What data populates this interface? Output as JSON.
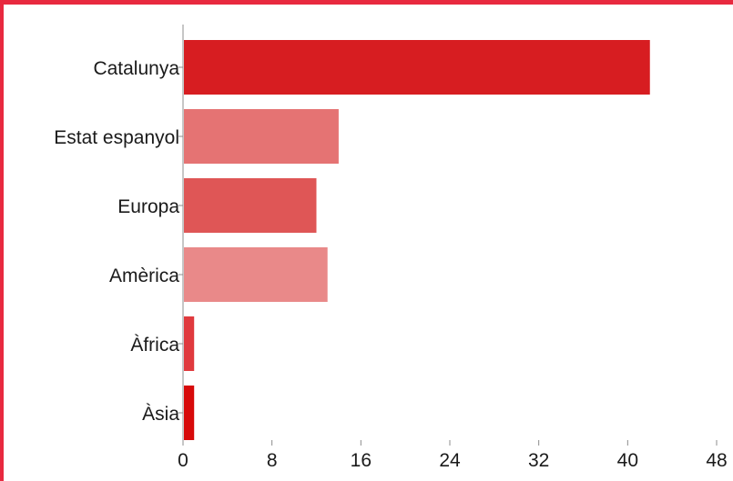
{
  "chart_data": {
    "type": "bar",
    "orientation": "horizontal",
    "categories": [
      "Catalunya",
      "Estat espanyol",
      "Europa",
      "Amèrica",
      "Àfrica",
      "Àsia"
    ],
    "values": [
      42,
      14,
      12,
      13,
      1,
      1
    ],
    "bar_colors": [
      "#d71d21",
      "#e57373",
      "#df5656",
      "#e98989",
      "#e03a3e",
      "#d70a0a"
    ],
    "xlim": [
      0,
      48
    ],
    "xticks": [
      0,
      8,
      16,
      24,
      32,
      40,
      48
    ],
    "title": "",
    "xlabel": "",
    "ylabel": "",
    "grid": false,
    "legend": "none"
  },
  "colors": {
    "frame_border": "#e8293f",
    "background": "#ffffff",
    "axis": "#8c8c8c"
  }
}
